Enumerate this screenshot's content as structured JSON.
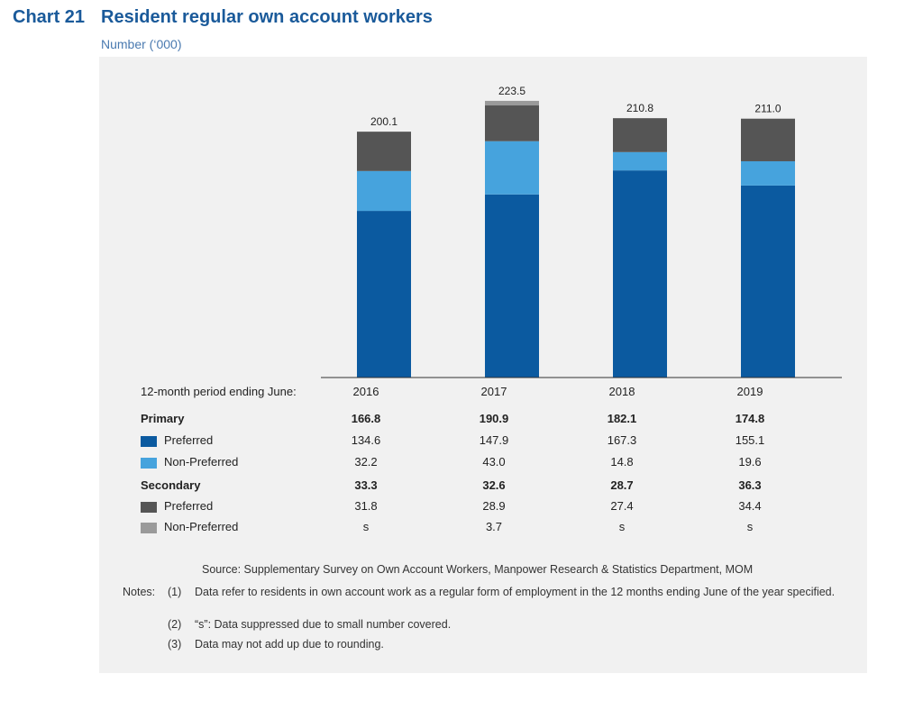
{
  "header": {
    "chart_number": "Chart 21",
    "title": "Resident regular own account workers",
    "subtitle": "Number (‘000)"
  },
  "chart_data": {
    "type": "bar",
    "stacked": true,
    "categories": [
      "2016",
      "2017",
      "2018",
      "2019"
    ],
    "totals": [
      "200.1",
      "223.5",
      "210.8",
      "211.0"
    ],
    "series": [
      {
        "name": "Primary Preferred",
        "color": "#0b5aa0",
        "values": [
          134.6,
          147.9,
          167.3,
          155.1
        ]
      },
      {
        "name": "Primary Non-Preferred",
        "color": "#46a3dd",
        "values": [
          32.2,
          43.0,
          14.8,
          19.6
        ]
      },
      {
        "name": "Secondary Preferred",
        "color": "#555555",
        "values": [
          31.8,
          28.9,
          27.4,
          34.4
        ]
      },
      {
        "name": "Secondary Non-Preferred",
        "color": "#9a9a9a",
        "values": [
          0,
          3.7,
          0,
          0
        ]
      }
    ],
    "ylim": [
      0,
      230
    ]
  },
  "table": {
    "period_label": "12-month period ending June:",
    "years": [
      "2016",
      "2017",
      "2018",
      "2019"
    ],
    "rows": [
      {
        "label": "Primary",
        "bold": true,
        "swatch": null,
        "values": [
          "166.8",
          "190.9",
          "182.1",
          "174.8"
        ]
      },
      {
        "label": "Preferred",
        "bold": false,
        "swatch": "#0b5aa0",
        "values": [
          "134.6",
          "147.9",
          "167.3",
          "155.1"
        ]
      },
      {
        "label": "Non-Preferred",
        "bold": false,
        "swatch": "#46a3dd",
        "values": [
          "32.2",
          "43.0",
          "14.8",
          "19.6"
        ]
      },
      {
        "label": "Secondary",
        "bold": true,
        "swatch": null,
        "values": [
          "33.3",
          "32.6",
          "28.7",
          "36.3"
        ]
      },
      {
        "label": "Preferred",
        "bold": false,
        "swatch": "#555555",
        "values": [
          "31.8",
          "28.9",
          "27.4",
          "34.4"
        ]
      },
      {
        "label": "Non-Preferred",
        "bold": false,
        "swatch": "#9a9a9a",
        "values": [
          "s",
          "3.7",
          "s",
          "s"
        ]
      }
    ]
  },
  "footer": {
    "source": "Source: Supplementary Survey on Own Account Workers, Manpower Research & Statistics Department, MOM",
    "notes_label": "Notes:",
    "notes": [
      {
        "num": "(1)",
        "text": "Data refer to residents in own account work as a regular form of employment in the 12 months ending June of the year specified."
      },
      {
        "num": "(2)",
        "text": "“s”: Data suppressed due to small number covered."
      },
      {
        "num": "(3)",
        "text": "Data may not add up due to rounding."
      }
    ]
  }
}
